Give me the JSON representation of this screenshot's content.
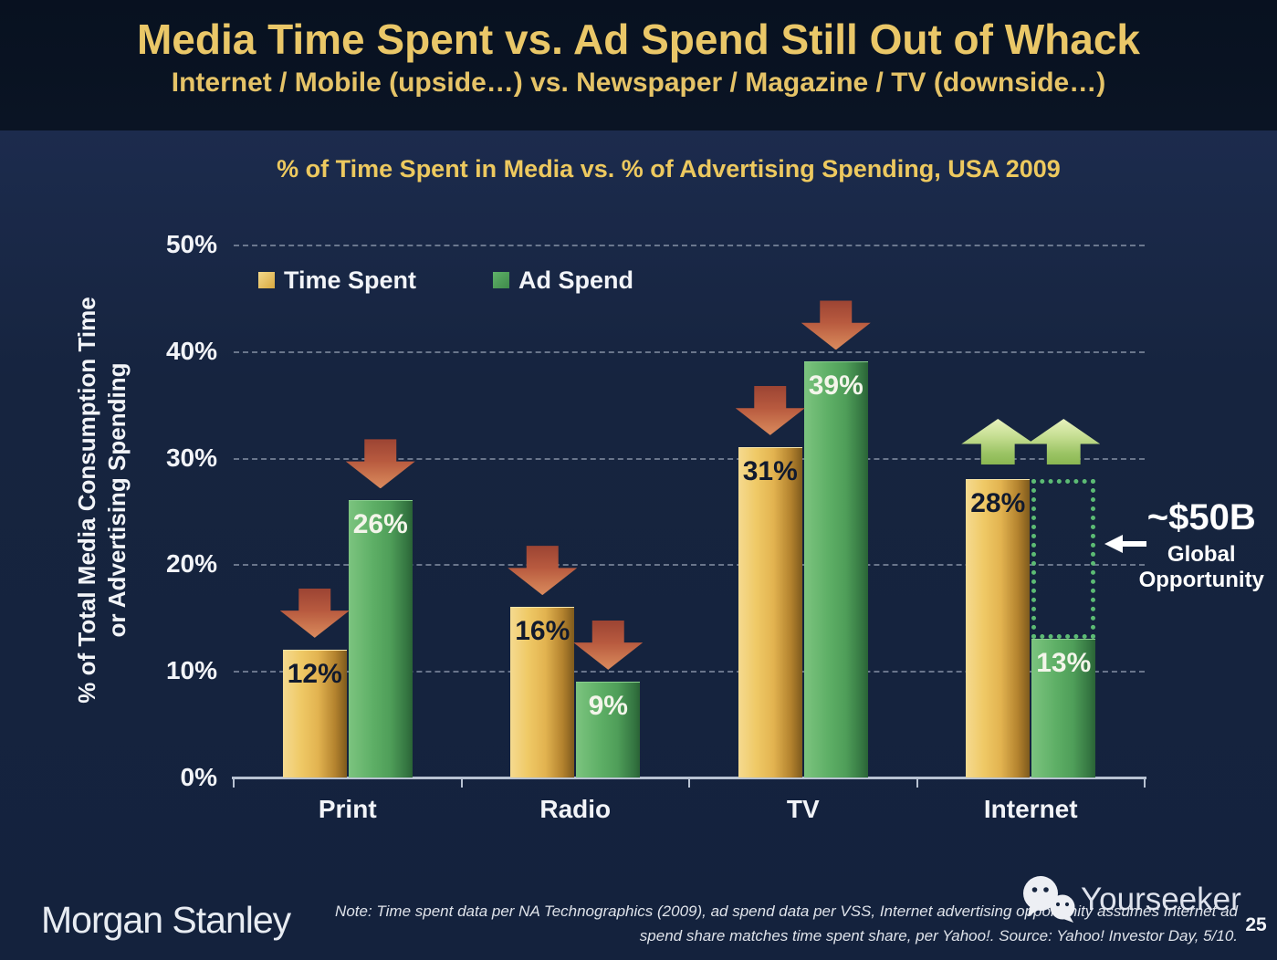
{
  "header": {
    "title": "Media Time Spent vs. Ad Spend Still Out of Whack",
    "subtitle": "Internet / Mobile (upside…) vs. Newspaper / Magazine / TV (downside…)"
  },
  "chart_data": {
    "type": "bar",
    "title": "% of Time Spent in Media vs. % of Advertising Spending, USA 2009",
    "categories": [
      "Print",
      "Radio",
      "TV",
      "Internet"
    ],
    "series": [
      {
        "name": "Time Spent",
        "color": "#E3B75C",
        "values": [
          12,
          16,
          31,
          28
        ]
      },
      {
        "name": "Ad Spend",
        "color": "#55A75F",
        "values": [
          26,
          9,
          39,
          13
        ]
      }
    ],
    "value_label_format": "{v}%",
    "ylabel_line1": "% of Total Media Consumption Time",
    "ylabel_line2": "or Advertising Spending",
    "xlabel": "",
    "ylim": [
      0,
      50
    ],
    "y_ticks": [
      "0%",
      "10%",
      "20%",
      "30%",
      "40%",
      "50%"
    ],
    "grid": "horizontal dashed lines every 10%",
    "legend_position": "top-left inside plot",
    "trend_arrows": [
      {
        "category": "Print",
        "time_spent": "down",
        "ad_spend": "down"
      },
      {
        "category": "Radio",
        "time_spent": "down",
        "ad_spend": "down"
      },
      {
        "category": "TV",
        "time_spent": "down",
        "ad_spend": "down"
      },
      {
        "category": "Internet",
        "time_spent": "up",
        "ad_spend": "up"
      }
    ],
    "annotation": {
      "value": "~$50B",
      "label_line1": "Global",
      "label_line2": "Opportunity",
      "target": "dotted gap box between Internet time spent (28%) and ad spend (13%)"
    }
  },
  "footer": {
    "brand": "Morgan Stanley",
    "note_line1": "Note: Time spent data per NA Technographics (2009), ad spend data per VSS, Internet advertising opportunity assumes Internet ad",
    "note_line2": "spend share matches time spent share, per Yahoo!. Source: Yahoo! Investor Day, 5/10.",
    "watermark": "Yourseeker",
    "page_number": "25"
  },
  "colors": {
    "background": "#14223D",
    "header_background": "#0A1424",
    "title_gold": "#EAC768",
    "bar_gold": "#E3B75C",
    "bar_green": "#55A75F",
    "down_arrow_red": "#C06A48",
    "up_arrow_green": "#A8CC74",
    "gap_box_green": "#5CBB74",
    "text_white": "#F2F4F8"
  }
}
